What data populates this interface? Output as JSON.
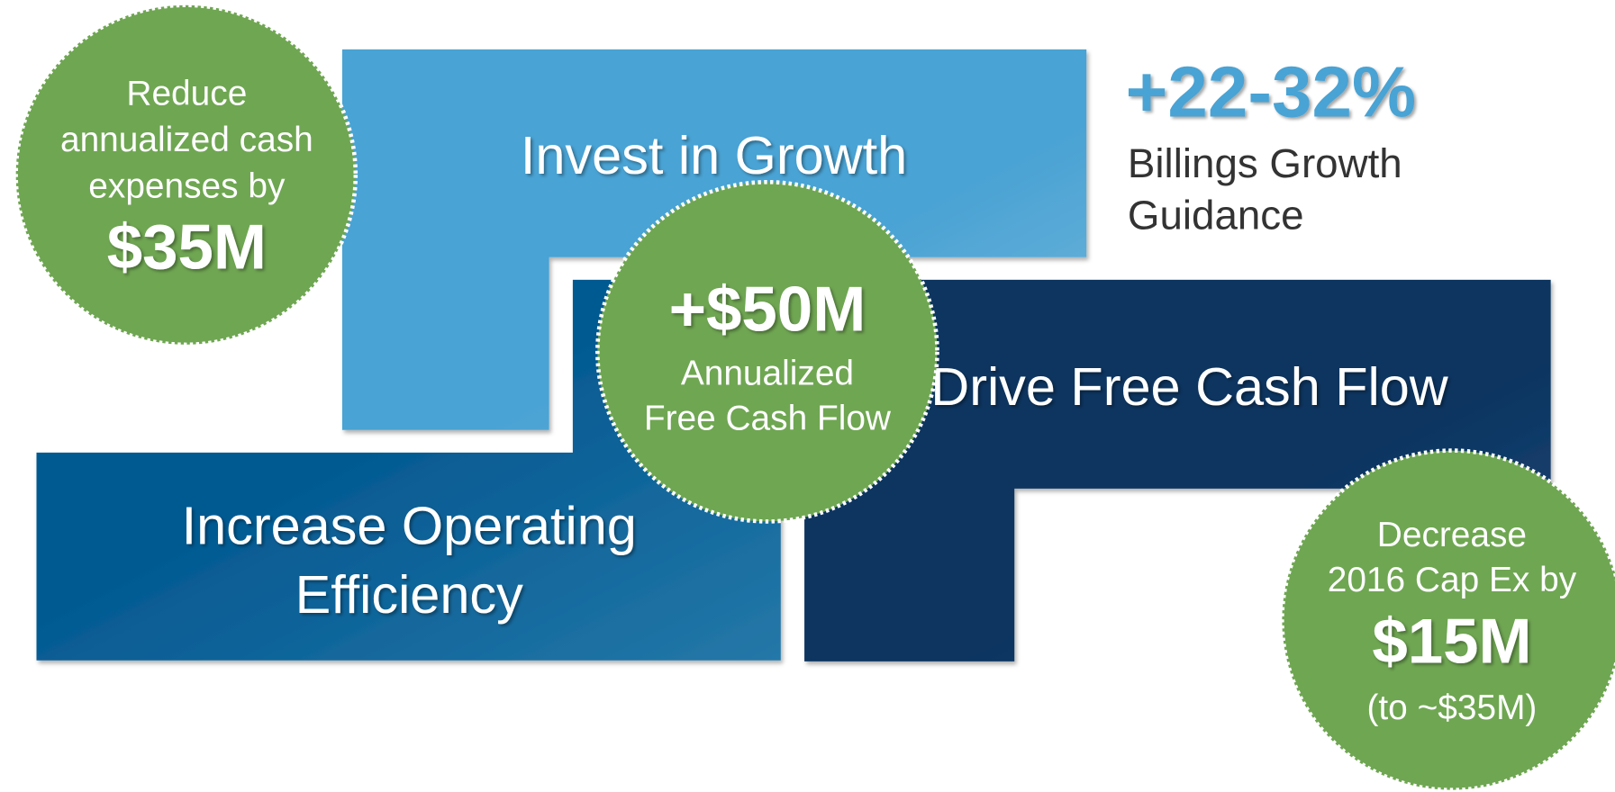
{
  "blocks": [
    {
      "label": [
        "Invest in Growth"
      ]
    },
    {
      "label": [
        "Increase Operating",
        "Efficiency"
      ]
    },
    {
      "label": [
        "Drive Free Cash Flow"
      ]
    }
  ],
  "highlight": {
    "value": "+22-32%",
    "caption": [
      "Billings Growth",
      "Guidance"
    ]
  },
  "circles": [
    {
      "lines": [
        "Reduce",
        "annualized cash",
        "expenses by"
      ],
      "amount": "$35M"
    },
    {
      "amount": "+$50M",
      "lines": [
        "Annualized",
        "Free Cash Flow"
      ]
    },
    {
      "lines": [
        "Decrease",
        "2016 Cap Ex by"
      ],
      "amount": "$15M",
      "note": "(to ~$35M)"
    }
  ]
}
